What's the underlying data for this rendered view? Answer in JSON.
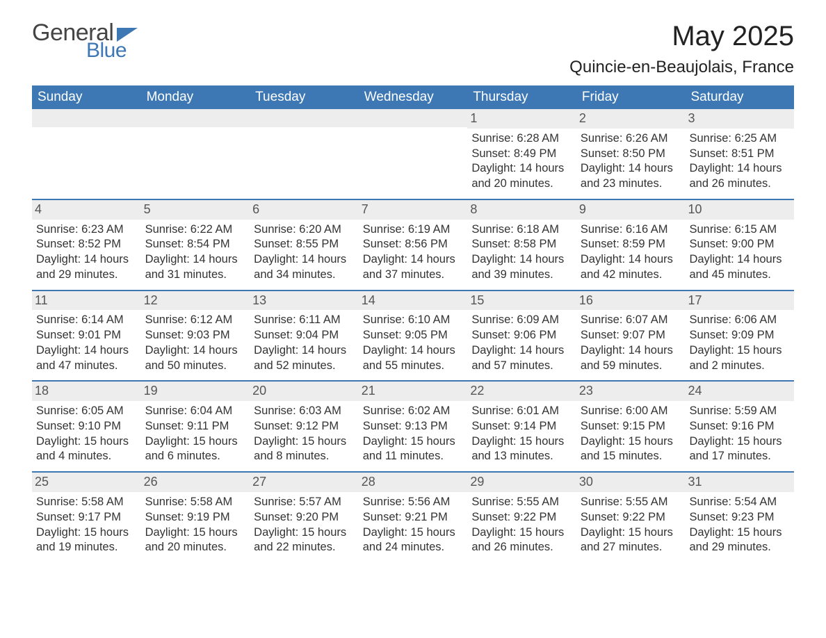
{
  "logo": {
    "word1": "General",
    "word2": "Blue"
  },
  "title": "May 2025",
  "subtitle": "Quincie-en-Beaujolais, France",
  "colors": {
    "header_bg": "#3d78b4",
    "header_text": "#ffffff",
    "daynum_bg": "#ededed",
    "daynum_text": "#555555",
    "body_text": "#333333",
    "week_border": "#3d78b4",
    "page_bg": "#ffffff",
    "logo_gray": "#444444",
    "logo_blue": "#3d78b4"
  },
  "typography": {
    "title_fontsize": 40,
    "subtitle_fontsize": 24,
    "dow_fontsize": 19,
    "daynum_fontsize": 18,
    "body_fontsize": 16.5,
    "font_family": "Arial"
  },
  "days_of_week": [
    "Sunday",
    "Monday",
    "Tuesday",
    "Wednesday",
    "Thursday",
    "Friday",
    "Saturday"
  ],
  "weeks": [
    [
      null,
      null,
      null,
      null,
      {
        "n": "1",
        "sunrise": "Sunrise: 6:28 AM",
        "sunset": "Sunset: 8:49 PM",
        "daylight": "Daylight: 14 hours and 20 minutes."
      },
      {
        "n": "2",
        "sunrise": "Sunrise: 6:26 AM",
        "sunset": "Sunset: 8:50 PM",
        "daylight": "Daylight: 14 hours and 23 minutes."
      },
      {
        "n": "3",
        "sunrise": "Sunrise: 6:25 AM",
        "sunset": "Sunset: 8:51 PM",
        "daylight": "Daylight: 14 hours and 26 minutes."
      }
    ],
    [
      {
        "n": "4",
        "sunrise": "Sunrise: 6:23 AM",
        "sunset": "Sunset: 8:52 PM",
        "daylight": "Daylight: 14 hours and 29 minutes."
      },
      {
        "n": "5",
        "sunrise": "Sunrise: 6:22 AM",
        "sunset": "Sunset: 8:54 PM",
        "daylight": "Daylight: 14 hours and 31 minutes."
      },
      {
        "n": "6",
        "sunrise": "Sunrise: 6:20 AM",
        "sunset": "Sunset: 8:55 PM",
        "daylight": "Daylight: 14 hours and 34 minutes."
      },
      {
        "n": "7",
        "sunrise": "Sunrise: 6:19 AM",
        "sunset": "Sunset: 8:56 PM",
        "daylight": "Daylight: 14 hours and 37 minutes."
      },
      {
        "n": "8",
        "sunrise": "Sunrise: 6:18 AM",
        "sunset": "Sunset: 8:58 PM",
        "daylight": "Daylight: 14 hours and 39 minutes."
      },
      {
        "n": "9",
        "sunrise": "Sunrise: 6:16 AM",
        "sunset": "Sunset: 8:59 PM",
        "daylight": "Daylight: 14 hours and 42 minutes."
      },
      {
        "n": "10",
        "sunrise": "Sunrise: 6:15 AM",
        "sunset": "Sunset: 9:00 PM",
        "daylight": "Daylight: 14 hours and 45 minutes."
      }
    ],
    [
      {
        "n": "11",
        "sunrise": "Sunrise: 6:14 AM",
        "sunset": "Sunset: 9:01 PM",
        "daylight": "Daylight: 14 hours and 47 minutes."
      },
      {
        "n": "12",
        "sunrise": "Sunrise: 6:12 AM",
        "sunset": "Sunset: 9:03 PM",
        "daylight": "Daylight: 14 hours and 50 minutes."
      },
      {
        "n": "13",
        "sunrise": "Sunrise: 6:11 AM",
        "sunset": "Sunset: 9:04 PM",
        "daylight": "Daylight: 14 hours and 52 minutes."
      },
      {
        "n": "14",
        "sunrise": "Sunrise: 6:10 AM",
        "sunset": "Sunset: 9:05 PM",
        "daylight": "Daylight: 14 hours and 55 minutes."
      },
      {
        "n": "15",
        "sunrise": "Sunrise: 6:09 AM",
        "sunset": "Sunset: 9:06 PM",
        "daylight": "Daylight: 14 hours and 57 minutes."
      },
      {
        "n": "16",
        "sunrise": "Sunrise: 6:07 AM",
        "sunset": "Sunset: 9:07 PM",
        "daylight": "Daylight: 14 hours and 59 minutes."
      },
      {
        "n": "17",
        "sunrise": "Sunrise: 6:06 AM",
        "sunset": "Sunset: 9:09 PM",
        "daylight": "Daylight: 15 hours and 2 minutes."
      }
    ],
    [
      {
        "n": "18",
        "sunrise": "Sunrise: 6:05 AM",
        "sunset": "Sunset: 9:10 PM",
        "daylight": "Daylight: 15 hours and 4 minutes."
      },
      {
        "n": "19",
        "sunrise": "Sunrise: 6:04 AM",
        "sunset": "Sunset: 9:11 PM",
        "daylight": "Daylight: 15 hours and 6 minutes."
      },
      {
        "n": "20",
        "sunrise": "Sunrise: 6:03 AM",
        "sunset": "Sunset: 9:12 PM",
        "daylight": "Daylight: 15 hours and 8 minutes."
      },
      {
        "n": "21",
        "sunrise": "Sunrise: 6:02 AM",
        "sunset": "Sunset: 9:13 PM",
        "daylight": "Daylight: 15 hours and 11 minutes."
      },
      {
        "n": "22",
        "sunrise": "Sunrise: 6:01 AM",
        "sunset": "Sunset: 9:14 PM",
        "daylight": "Daylight: 15 hours and 13 minutes."
      },
      {
        "n": "23",
        "sunrise": "Sunrise: 6:00 AM",
        "sunset": "Sunset: 9:15 PM",
        "daylight": "Daylight: 15 hours and 15 minutes."
      },
      {
        "n": "24",
        "sunrise": "Sunrise: 5:59 AM",
        "sunset": "Sunset: 9:16 PM",
        "daylight": "Daylight: 15 hours and 17 minutes."
      }
    ],
    [
      {
        "n": "25",
        "sunrise": "Sunrise: 5:58 AM",
        "sunset": "Sunset: 9:17 PM",
        "daylight": "Daylight: 15 hours and 19 minutes."
      },
      {
        "n": "26",
        "sunrise": "Sunrise: 5:58 AM",
        "sunset": "Sunset: 9:19 PM",
        "daylight": "Daylight: 15 hours and 20 minutes."
      },
      {
        "n": "27",
        "sunrise": "Sunrise: 5:57 AM",
        "sunset": "Sunset: 9:20 PM",
        "daylight": "Daylight: 15 hours and 22 minutes."
      },
      {
        "n": "28",
        "sunrise": "Sunrise: 5:56 AM",
        "sunset": "Sunset: 9:21 PM",
        "daylight": "Daylight: 15 hours and 24 minutes."
      },
      {
        "n": "29",
        "sunrise": "Sunrise: 5:55 AM",
        "sunset": "Sunset: 9:22 PM",
        "daylight": "Daylight: 15 hours and 26 minutes."
      },
      {
        "n": "30",
        "sunrise": "Sunrise: 5:55 AM",
        "sunset": "Sunset: 9:22 PM",
        "daylight": "Daylight: 15 hours and 27 minutes."
      },
      {
        "n": "31",
        "sunrise": "Sunrise: 5:54 AM",
        "sunset": "Sunset: 9:23 PM",
        "daylight": "Daylight: 15 hours and 29 minutes."
      }
    ]
  ]
}
